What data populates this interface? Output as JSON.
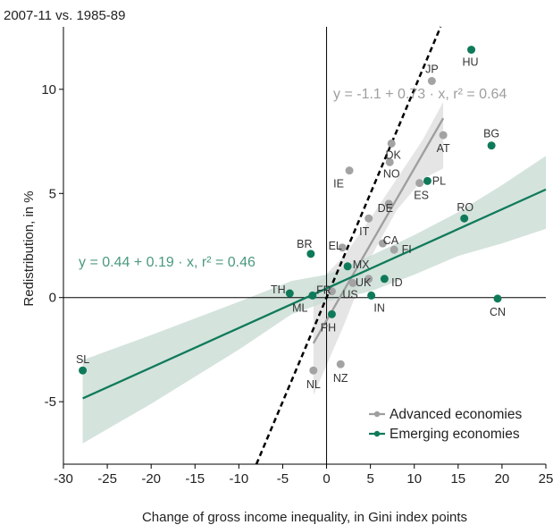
{
  "chart_data": {
    "type": "scatter",
    "subtitle": "2007-11 vs. 1985-89",
    "xlabel": "Change of gross income inequality, in Gini index points",
    "ylabel": "Redistribution, in %",
    "xlim": [
      -30,
      25
    ],
    "ylim": [
      -8,
      13
    ],
    "x_ticks": [
      -30,
      -25,
      -20,
      -15,
      -10,
      -5,
      0,
      5,
      10,
      15,
      20,
      25
    ],
    "y_ticks": [
      -5,
      0,
      5,
      10
    ],
    "colors": {
      "advanced": "#a3a3a3",
      "emerging": "#0f7a5a",
      "advanced_line": "#9e9e9e",
      "advanced_band": "#e0e0e0",
      "emerging_band": "#c9dcd3",
      "diagonal": "#000000"
    },
    "series": [
      {
        "name": "Advanced economies",
        "points": [
          {
            "label": "JP",
            "x": 12.0,
            "y": 10.4
          },
          {
            "label": "AT",
            "x": 13.3,
            "y": 7.8
          },
          {
            "label": "DK",
            "x": 7.4,
            "y": 7.4
          },
          {
            "label": "NO",
            "x": 7.2,
            "y": 6.5
          },
          {
            "label": "IE",
            "x": 2.6,
            "y": 6.1
          },
          {
            "label": "ES",
            "x": 10.6,
            "y": 5.5
          },
          {
            "label": "DE",
            "x": 7.1,
            "y": 4.5
          },
          {
            "label": "IT",
            "x": 4.8,
            "y": 3.8
          },
          {
            "label": "CA",
            "x": 6.4,
            "y": 2.6
          },
          {
            "label": "EL",
            "x": 1.8,
            "y": 2.4
          },
          {
            "label": "FI",
            "x": 7.7,
            "y": 2.3
          },
          {
            "label": "UK",
            "x": 4.8,
            "y": 0.9
          },
          {
            "label": "US",
            "x": 3.0,
            "y": 0.7
          },
          {
            "label": "FR",
            "x": 0.6,
            "y": 0.3
          },
          {
            "label": "NL",
            "x": -1.5,
            "y": -3.5
          },
          {
            "label": "NZ",
            "x": 1.6,
            "y": -3.2
          }
        ]
      },
      {
        "name": "Emerging economies",
        "points": [
          {
            "label": "HU",
            "x": 16.5,
            "y": 11.9
          },
          {
            "label": "BG",
            "x": 18.8,
            "y": 7.3
          },
          {
            "label": "PL",
            "x": 11.5,
            "y": 5.6
          },
          {
            "label": "RO",
            "x": 15.7,
            "y": 3.8
          },
          {
            "label": "BR",
            "x": -1.8,
            "y": 2.1
          },
          {
            "label": "MX",
            "x": 2.4,
            "y": 1.5
          },
          {
            "label": "ID",
            "x": 6.6,
            "y": 0.9
          },
          {
            "label": "TH",
            "x": -4.2,
            "y": 0.2
          },
          {
            "label": "ML",
            "x": -1.6,
            "y": 0.1
          },
          {
            "label": "IN",
            "x": 5.1,
            "y": 0.1
          },
          {
            "label": "CN",
            "x": 19.5,
            "y": -0.05
          },
          {
            "label": "PH",
            "x": 0.6,
            "y": -0.8
          },
          {
            "label": "SL",
            "x": -27.8,
            "y": -3.5
          }
        ]
      }
    ],
    "fits": [
      {
        "series": "Advanced economies",
        "equation": "y = -1.1 + 0.73 · x, r² = 0.64",
        "intercept": -1.1,
        "slope": 0.73,
        "x_range": [
          -1.5,
          13.3
        ],
        "band_upper": [
          [
            -1.5,
            0.5
          ],
          [
            2,
            2.0
          ],
          [
            5,
            3.8
          ],
          [
            8,
            5.7
          ],
          [
            11,
            7.6
          ],
          [
            13.3,
            9.4
          ]
        ],
        "band_lower": [
          [
            -1.5,
            -4.7
          ],
          [
            2,
            -1.3
          ],
          [
            5,
            1.9
          ],
          [
            8,
            4.2
          ],
          [
            11,
            5.7
          ],
          [
            13.3,
            6.2
          ]
        ]
      },
      {
        "series": "Emerging economies",
        "equation": "y = 0.44 + 0.19 · x, r² = 0.46",
        "intercept": 0.44,
        "slope": 0.19,
        "x_range": [
          -27.8,
          25
        ],
        "band_upper": [
          [
            -27.8,
            -3.0
          ],
          [
            -20,
            -1.8
          ],
          [
            -10,
            -0.2
          ],
          [
            -4,
            0.8
          ],
          [
            0,
            1.1
          ],
          [
            5,
            2.0
          ],
          [
            10,
            3.0
          ],
          [
            15,
            4.1
          ],
          [
            20,
            5.4
          ],
          [
            25,
            6.8
          ]
        ],
        "band_lower": [
          [
            -27.8,
            -7.0
          ],
          [
            -20,
            -5.1
          ],
          [
            -10,
            -2.5
          ],
          [
            -4,
            -0.8
          ],
          [
            0,
            -0.2
          ],
          [
            5,
            0.3
          ],
          [
            10,
            1.1
          ],
          [
            15,
            2.0
          ],
          [
            20,
            2.6
          ],
          [
            25,
            3.3
          ]
        ]
      }
    ],
    "reference_line": {
      "description": "dashed 45-degree line",
      "slope": 1,
      "intercept": 0
    },
    "grid": false,
    "legend_position": "bottom-right"
  }
}
